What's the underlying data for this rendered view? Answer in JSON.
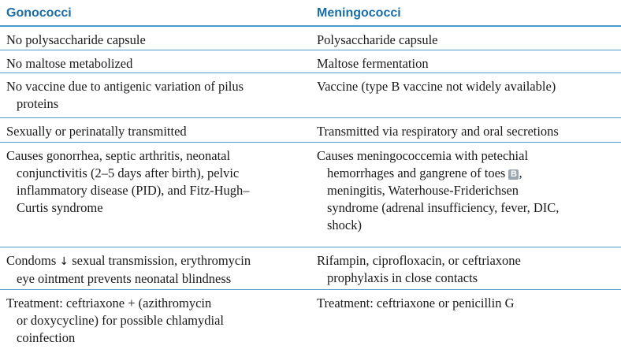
{
  "header": {
    "col1": "Gonococci",
    "col2": "Meningococci"
  },
  "rows": [
    {
      "left": [
        "No polysaccharide capsule"
      ],
      "right": [
        "Polysaccharide capsule"
      ]
    },
    {
      "left": [
        "No maltose metabolized"
      ],
      "right": [
        "Maltose fermentation"
      ]
    },
    {
      "left": [
        "No vaccine due to antigenic variation of pilus",
        "proteins"
      ],
      "right": [
        "Vaccine (type B vaccine not widely available)"
      ]
    },
    {
      "left": [
        "Sexually or perinatally transmitted"
      ],
      "right": [
        "Transmitted via respiratory and oral secretions"
      ]
    },
    {
      "left": [
        "Causes gonorrhea, septic arthritis, neonatal",
        "conjunctivitis (2–5 days after birth), pelvic",
        "inflammatory disease (PID), and Fitz-Hugh–",
        "Curtis syndrome"
      ],
      "right": [
        "Causes meningococcemia with petechial",
        "hemorrhages and gangrene of toes",
        "meningitis, Waterhouse-Friderichsen",
        "syndrome (adrenal insufficiency, fever, DIC,",
        "shock)"
      ],
      "badge": "B"
    },
    {
      "left_prefix": "Condoms",
      "left_arrow": "↓",
      "left_rest": " sexual transmission, erythromycin",
      "left_line2": "eye ointment prevents neonatal blindness",
      "right": [
        "Rifampin, ciprofloxacin, or ceftriaxone",
        "prophylaxis in close contacts"
      ]
    },
    {
      "left": [
        "Treatment: ceftriaxone + (azithromycin",
        "or doxycycline) for possible chlamydial",
        "coinfection"
      ],
      "right": [
        "Treatment: ceftriaxone or penicillin G"
      ]
    }
  ]
}
